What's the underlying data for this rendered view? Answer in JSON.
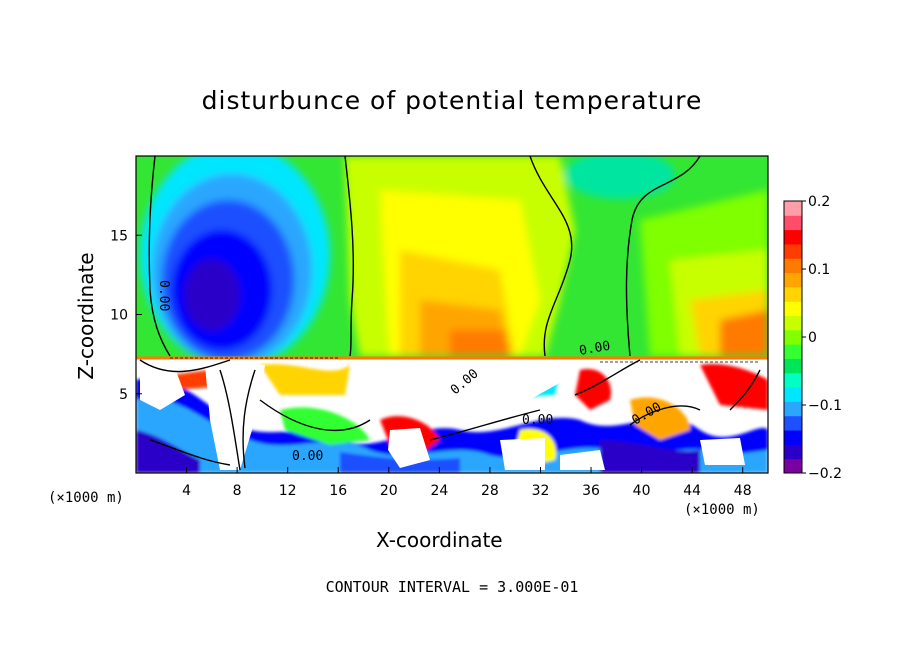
{
  "chart_data": {
    "type": "heatmap",
    "title": "disturbunce of potential temperature",
    "xlabel": "X-coordinate",
    "ylabel": "Z-coordinate",
    "x_unit_left": "(×1000 m)",
    "x_unit_right": "(×1000 m)",
    "x_ticks": [
      "4",
      "8",
      "12",
      "16",
      "20",
      "24",
      "28",
      "32",
      "36",
      "40",
      "44",
      "48"
    ],
    "x_tick_values": [
      4,
      8,
      12,
      16,
      20,
      24,
      28,
      32,
      36,
      40,
      44,
      48
    ],
    "y_ticks": [
      "5",
      "10",
      "15"
    ],
    "y_tick_values": [
      5,
      10,
      15
    ],
    "xlim": [
      0,
      50
    ],
    "ylim": [
      0,
      20
    ],
    "colorbar": {
      "ticks": [
        "0.2",
        "0.1",
        "0",
        "−0.1",
        "−0.2"
      ],
      "tick_values": [
        0.2,
        0.1,
        0,
        -0.1,
        -0.2
      ],
      "range": [
        -0.2,
        0.2
      ],
      "colors": [
        "#7a00a0",
        "#2a00c8",
        "#0000ff",
        "#1f4fff",
        "#2aa6ff",
        "#00e6ff",
        "#00ffc0",
        "#00e65a",
        "#33ff33",
        "#7fff00",
        "#c8ff00",
        "#ffff00",
        "#ffd400",
        "#ffa500",
        "#ff7a00",
        "#ff3c00",
        "#ff0000",
        "#ff4d6a",
        "#ff9da8"
      ]
    },
    "contour_labels": [
      "0.00",
      "0.00",
      "0.00",
      "0.00",
      "0.00",
      "0.00"
    ],
    "contour_interval_text": "CONTOUR INTERVAL = 3.000E-01"
  }
}
